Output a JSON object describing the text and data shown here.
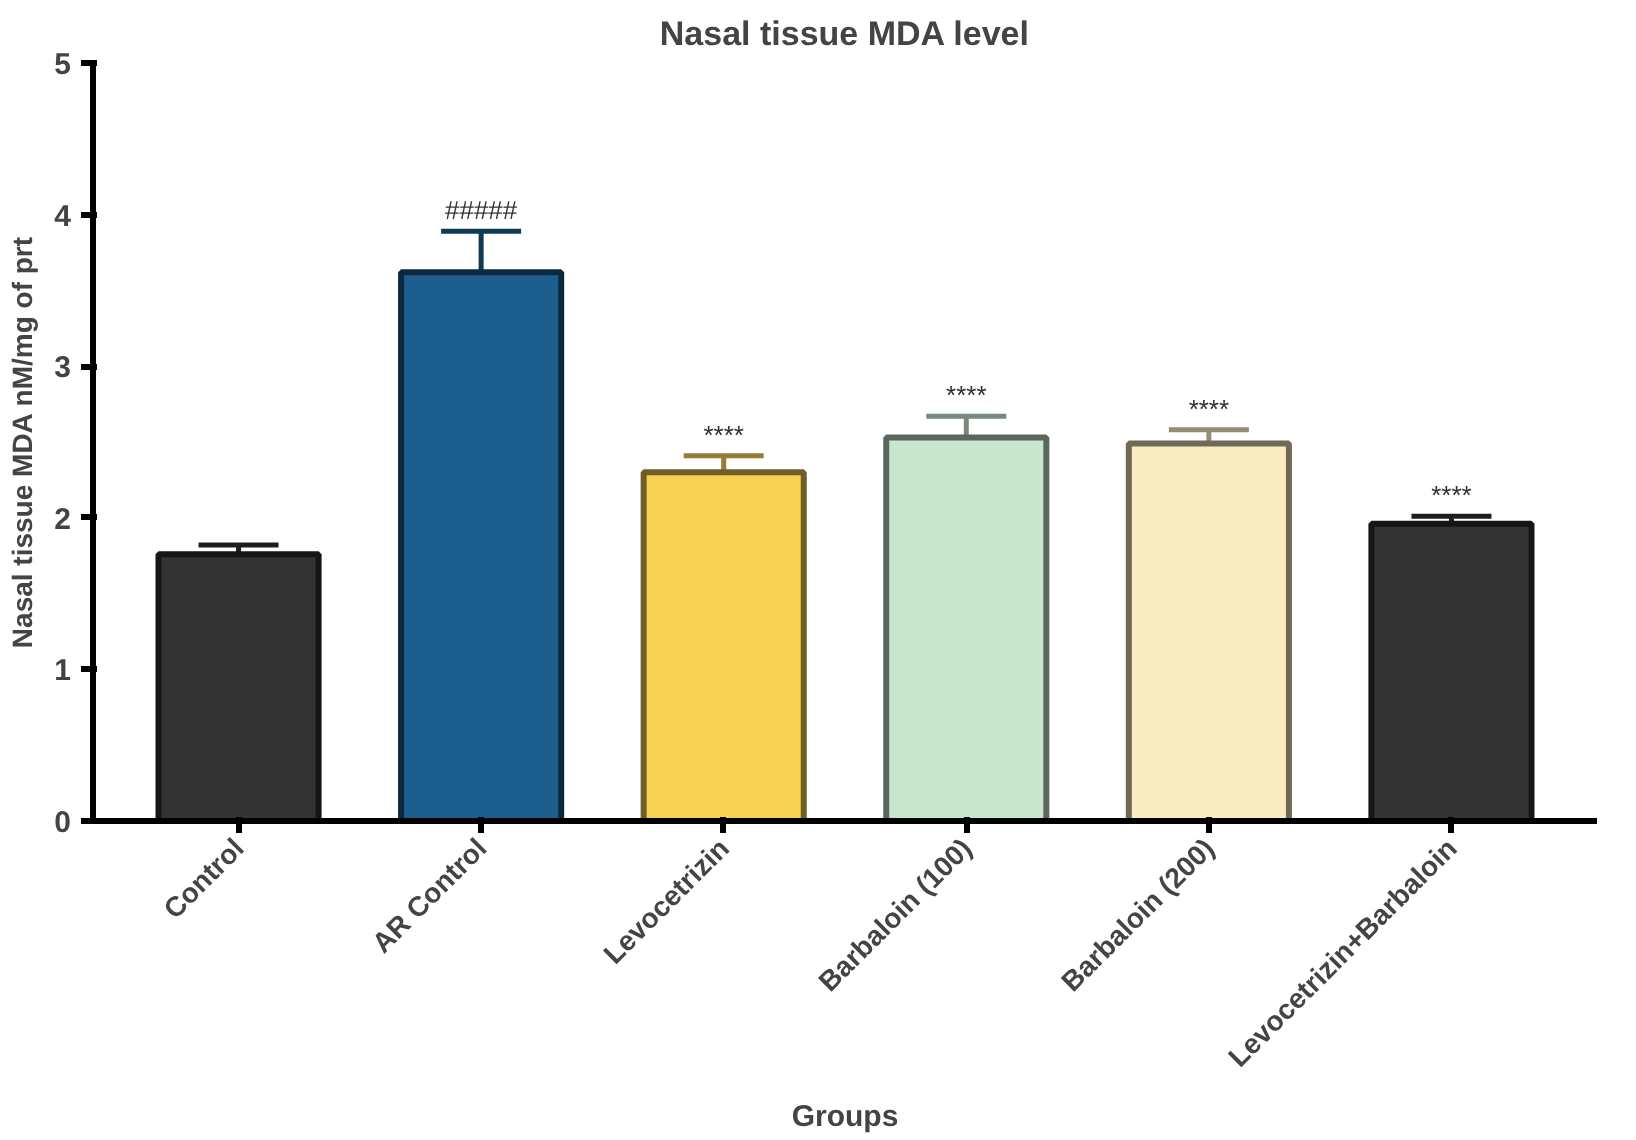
{
  "chart_data": {
    "type": "bar",
    "title": "Nasal tissue MDA level",
    "xlabel": "Groups",
    "ylabel": "Nasal tissue MDA nM/mg of prt",
    "categories": [
      "Control",
      "AR Control",
      "Levocetrizin",
      "Barbaloin (100)",
      "Barbaloin (200)",
      "Levocetrizin+Barbaloin"
    ],
    "values": [
      1.76,
      3.62,
      2.3,
      2.53,
      2.49,
      1.96
    ],
    "errors": [
      0.06,
      0.27,
      0.11,
      0.14,
      0.09,
      0.05
    ],
    "colors": [
      "#333333",
      "#1c5f8e",
      "#f9d155",
      "#c8e5cd",
      "#f8ecc0",
      "#333333"
    ],
    "ylim": [
      0,
      5
    ],
    "yticks": [
      0,
      1,
      2,
      3,
      4,
      5
    ],
    "grid": false,
    "annotations": [
      {
        "text": "#####",
        "x": "AR Control",
        "y": 3.89
      },
      {
        "text": "****",
        "x": "Levocetrizin",
        "y": 2.41
      },
      {
        "text": "****",
        "x": "Barbaloin (100)",
        "y": 2.67
      },
      {
        "text": "****",
        "x": "Barbaloin (200)",
        "y": 2.58
      },
      {
        "text": "****",
        "x": "Levocetrizin+Barbaloin",
        "y": 2.01
      }
    ]
  }
}
